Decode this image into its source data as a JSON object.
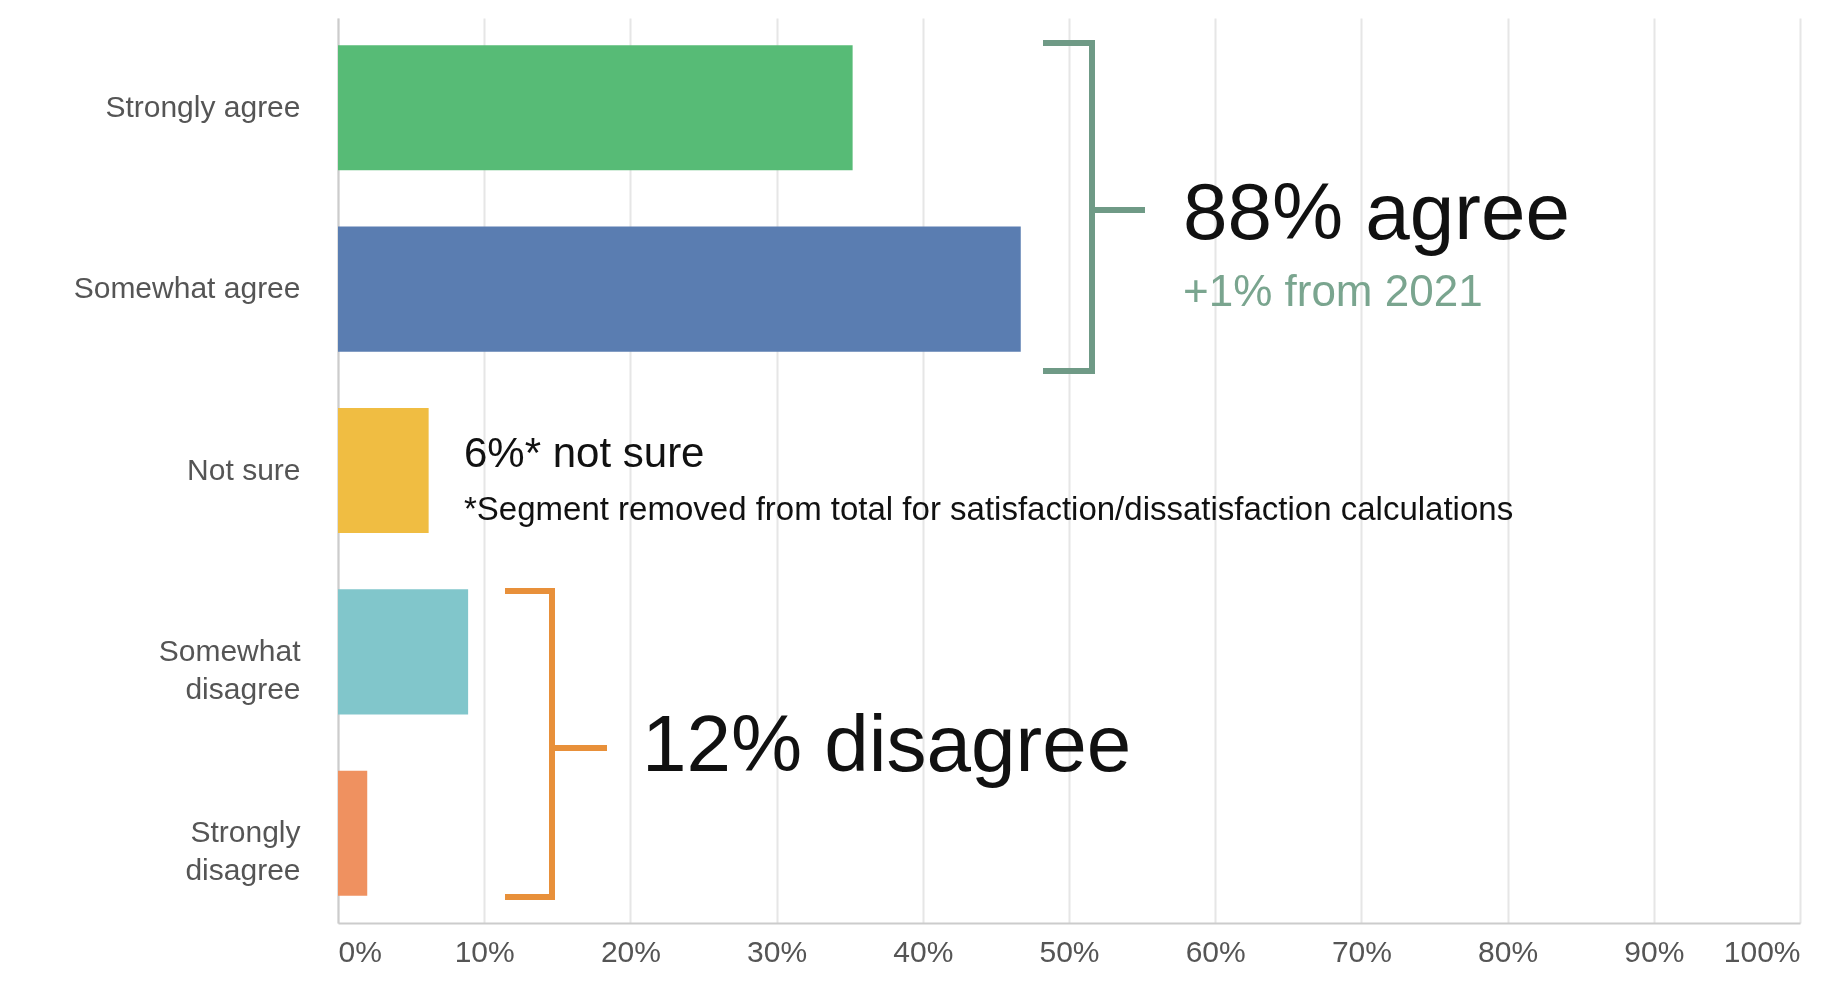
{
  "chart_data": {
    "type": "bar",
    "orientation": "horizontal",
    "categories": [
      "Strongly agree",
      "Somewhat agree",
      "Not sure",
      "Somewhat disagree",
      "Strongly disagree"
    ],
    "values": [
      35.2,
      46.7,
      6.2,
      8.9,
      2.0
    ],
    "colors": [
      "#57bb76",
      "#5a7db1",
      "#f0bd42",
      "#81c6cb",
      "#ef9160"
    ],
    "xlim": [
      0,
      100
    ],
    "xticks": [
      {
        "value": 0,
        "label": "0%"
      },
      {
        "value": 10,
        "label": "10%"
      },
      {
        "value": 20,
        "label": "20%"
      },
      {
        "value": 30,
        "label": "30%"
      },
      {
        "value": 40,
        "label": "40%"
      },
      {
        "value": 50,
        "label": "50%"
      },
      {
        "value": 60,
        "label": "60%"
      },
      {
        "value": 70,
        "label": "70%"
      },
      {
        "value": 80,
        "label": "80%"
      },
      {
        "value": 90,
        "label": "90%"
      },
      {
        "value": 100,
        "label": "100%"
      }
    ],
    "grid": "x",
    "annotations": [
      "88% agree",
      "+1% from 2021",
      "6%* not sure",
      "*Segment removed from total for satisfaction/dissatisfaction calculations",
      "12% disagree"
    ]
  }
}
